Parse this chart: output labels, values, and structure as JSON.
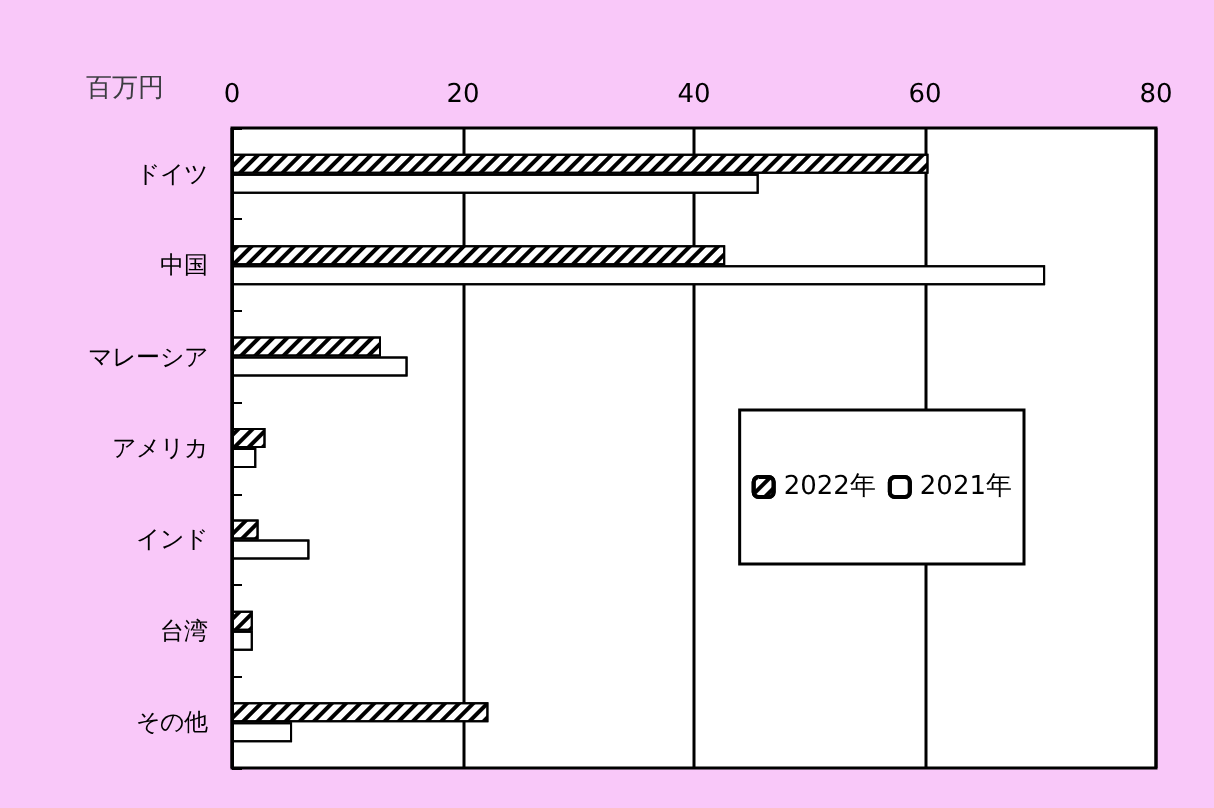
{
  "chart_data": {
    "type": "bar",
    "orientation": "horizontal",
    "xlabel": "百万円",
    "categories": [
      "ドイツ",
      "中国",
      "マレーシア",
      "アメリカ",
      "インド",
      "台湾",
      "その他"
    ],
    "series": [
      {
        "name": "2022年",
        "color": "#000000",
        "values": [
          60.3,
          42.7,
          12.9,
          2.9,
          2.3,
          1.8,
          22.2
        ]
      },
      {
        "name": "2021年",
        "color": "#000000",
        "values": [
          45.6,
          70.4,
          15.2,
          2.1,
          6.7,
          1.8,
          5.2
        ]
      }
    ],
    "xlim": [
      0,
      80
    ],
    "xticks": [
      0,
      20,
      40,
      60,
      80
    ],
    "grid": "x",
    "legend": "right"
  }
}
